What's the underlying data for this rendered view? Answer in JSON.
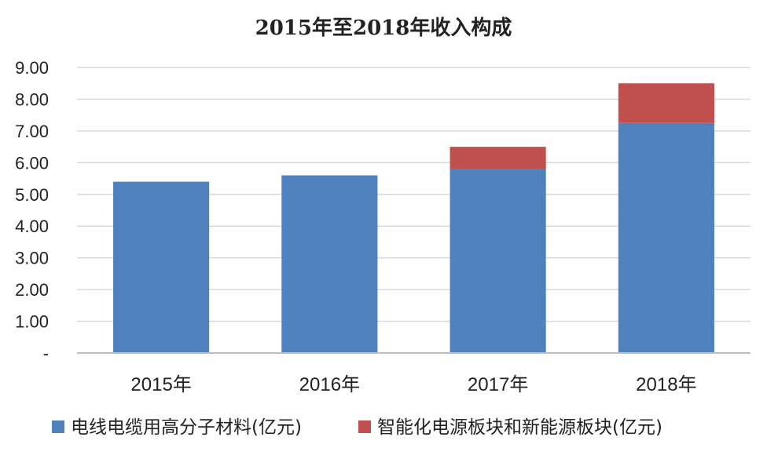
{
  "chart_data": {
    "type": "bar",
    "stacked": true,
    "title": "2015年至2018年收入构成",
    "categories": [
      "2015年",
      "2016年",
      "2017年",
      "2018年"
    ],
    "series": [
      {
        "name": "电线电缆用高分子材料(亿元)",
        "color": "#4f81bd",
        "values": [
          5.4,
          5.6,
          5.8,
          7.25
        ]
      },
      {
        "name": "智能化电源板块和新能源板块(亿元)",
        "color": "#c0504d",
        "values": [
          0,
          0,
          0.7,
          1.25
        ]
      }
    ],
    "yticks": [
      "-",
      "1.00",
      "2.00",
      "3.00",
      "4.00",
      "5.00",
      "6.00",
      "7.00",
      "8.00",
      "9.00"
    ],
    "ylim": [
      0,
      9
    ],
    "grid": true,
    "legend_position": "bottom"
  }
}
